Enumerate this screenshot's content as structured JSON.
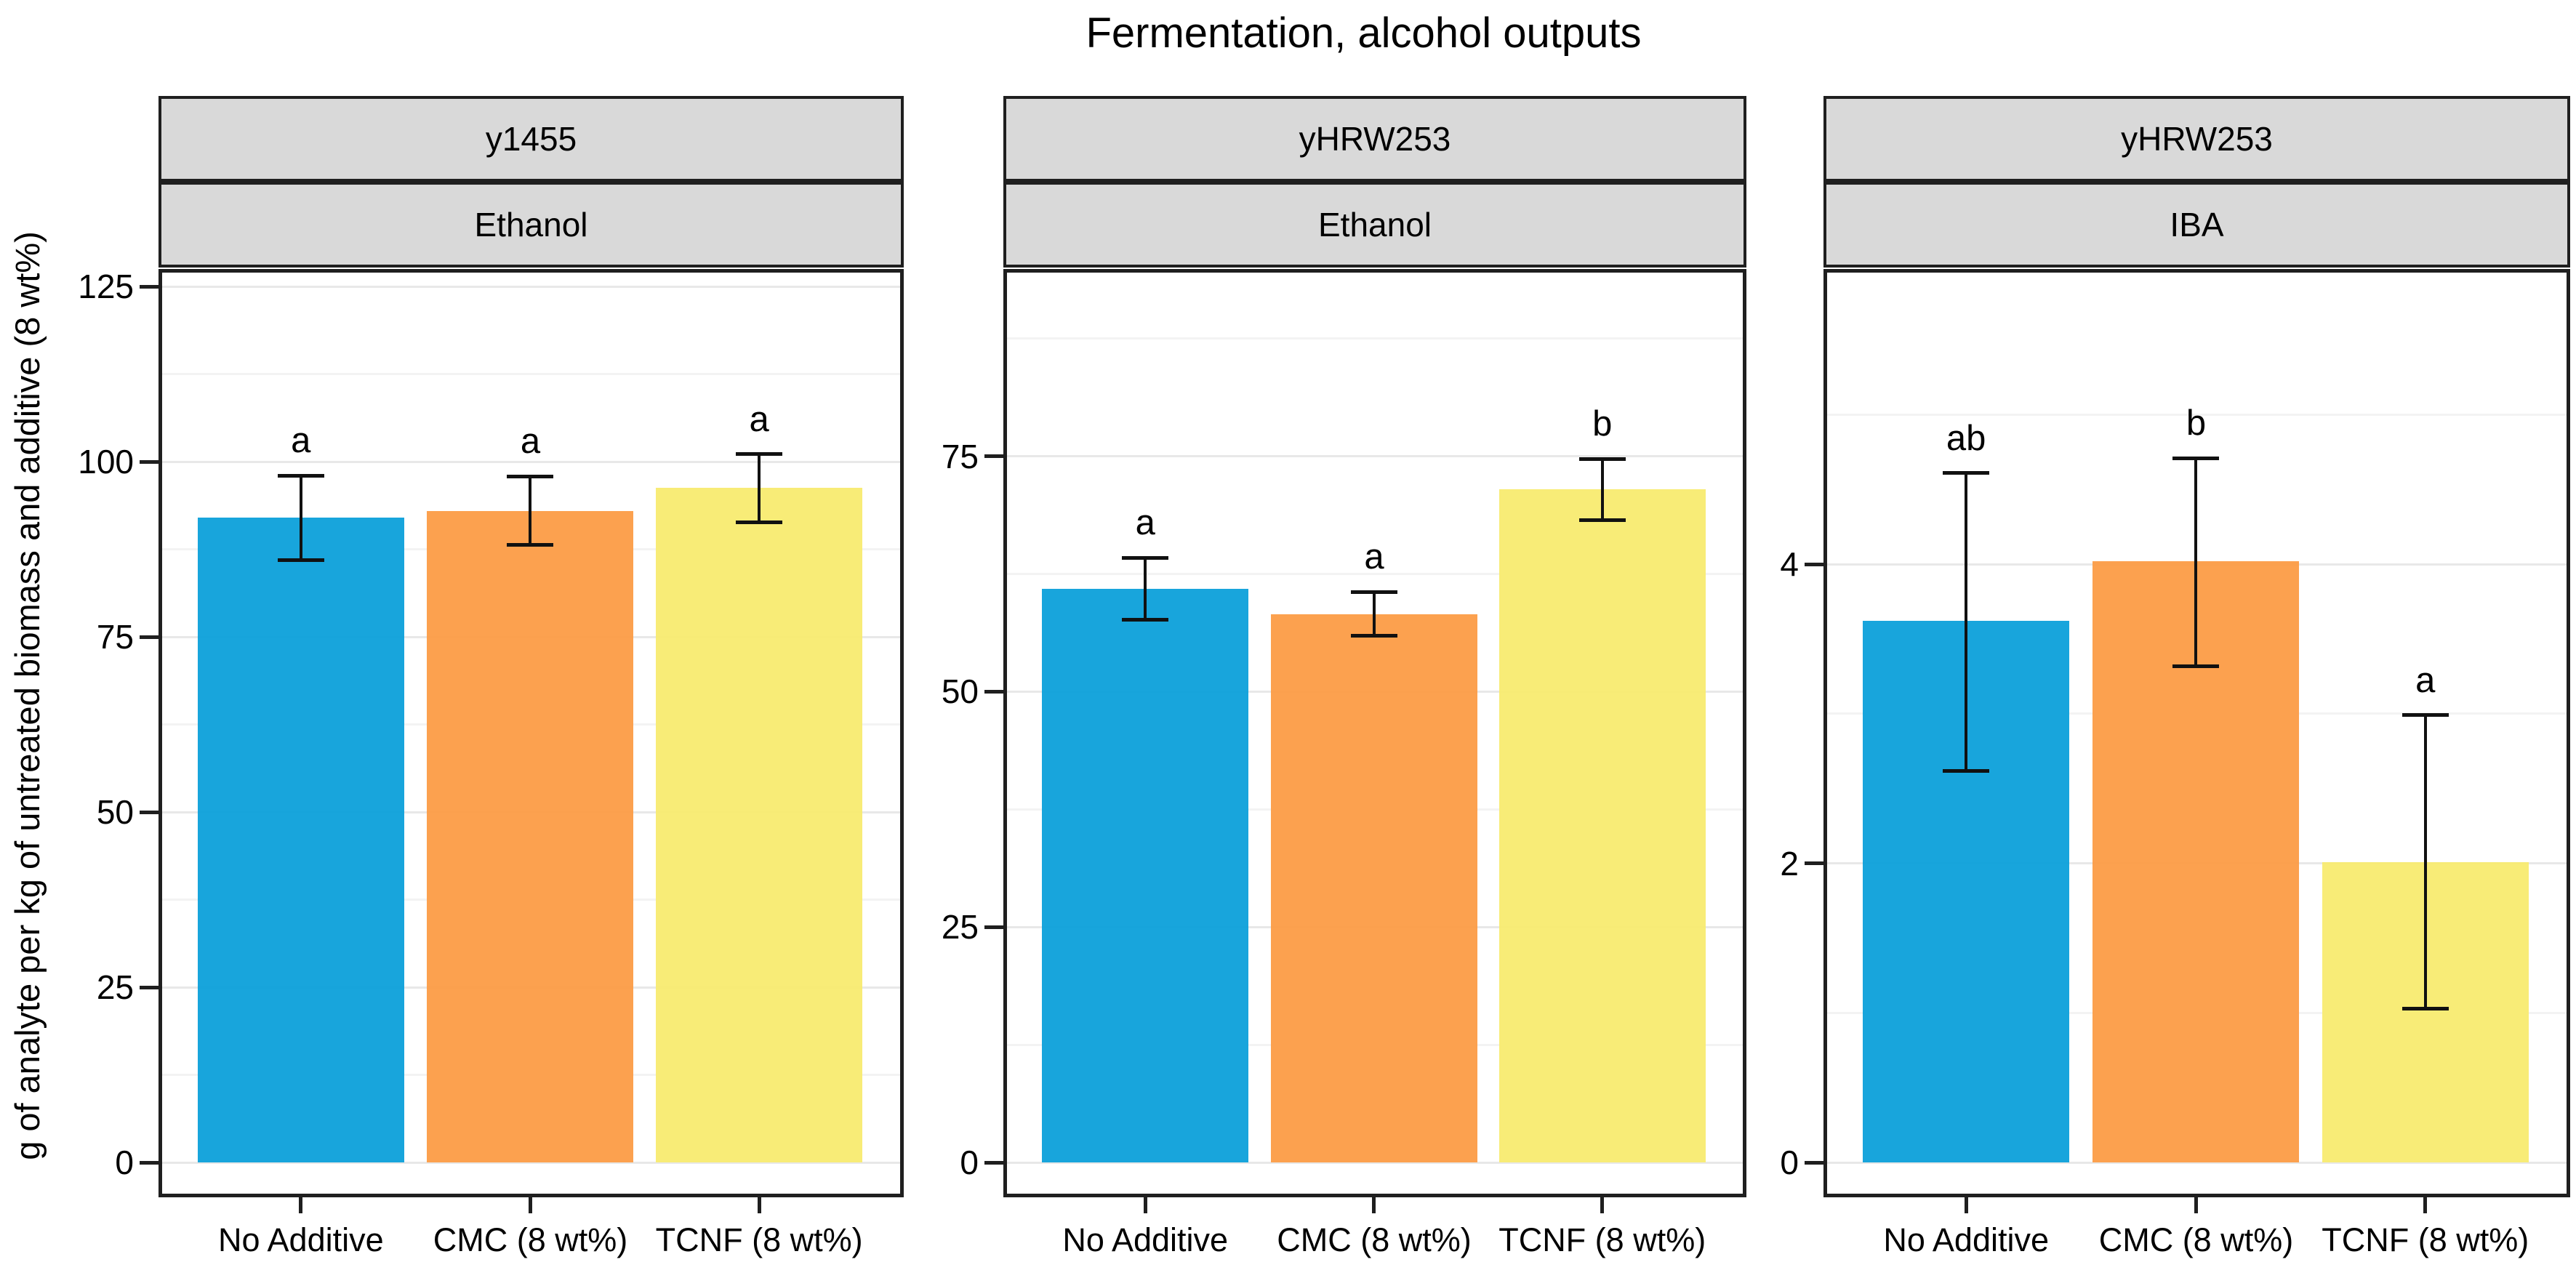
{
  "title": "Fermentation, alcohol outputs",
  "y_axis_title": "g of analyte per kg of untreated biomass and additive (8 wt%)",
  "x_categories": [
    "No Additive",
    "CMC (8 wt%)",
    "TCNF (8 wt%)"
  ],
  "colors": {
    "bar_no_additive": "#069ED9",
    "bar_cmc": "#FC9A42",
    "bar_tcnf": "#F7EB6D",
    "strip_background": "#D9D9D9",
    "grid_major": "#E8E8E8",
    "grid_minor": "#F3F3F3",
    "axis_border": "#1F1F1F",
    "text": "#000000"
  },
  "chart_data": [
    {
      "type": "bar",
      "strip_top": "y1455",
      "strip_bottom": "Ethanol",
      "categories": [
        "No Additive",
        "CMC (8 wt%)",
        "TCNF (8 wt%)"
      ],
      "values": [
        92.0,
        93.0,
        96.3
      ],
      "error_low": [
        86.0,
        88.1,
        91.4
      ],
      "error_high": [
        98.0,
        97.9,
        101.1
      ],
      "sig_letters": [
        "a",
        "a",
        "a"
      ],
      "y_ticks": [
        0,
        25,
        50,
        75,
        100,
        125
      ],
      "y_minor_ticks": [
        12.5,
        37.5,
        62.5,
        87.5,
        112.5
      ],
      "ylim": [
        0,
        127
      ],
      "xlabel": "",
      "ylabel": "g of analyte per kg of untreated biomass and additive (8 wt%)",
      "grid": "on",
      "legend": "none"
    },
    {
      "type": "bar",
      "strip_top": "yHRW253",
      "strip_bottom": "Ethanol",
      "categories": [
        "No Additive",
        "CMC (8 wt%)",
        "TCNF (8 wt%)"
      ],
      "values": [
        60.9,
        58.2,
        71.5
      ],
      "error_low": [
        57.6,
        55.9,
        68.2
      ],
      "error_high": [
        64.2,
        60.6,
        74.7
      ],
      "sig_letters": [
        "a",
        "a",
        "b"
      ],
      "y_ticks": [
        0,
        25,
        50,
        75
      ],
      "y_minor_ticks": [
        12.5,
        37.5,
        62.5,
        87.5
      ],
      "ylim": [
        0,
        94.5
      ],
      "xlabel": "",
      "ylabel": "g of analyte per kg of untreated biomass and additive (8 wt%)",
      "grid": "on",
      "legend": "none"
    },
    {
      "type": "bar",
      "strip_top": "yHRW253",
      "strip_bottom": "IBA",
      "categories": [
        "No Additive",
        "CMC (8 wt%)",
        "TCNF (8 wt%)"
      ],
      "values": [
        3.62,
        4.02,
        2.01
      ],
      "error_low": [
        2.62,
        3.32,
        1.03
      ],
      "error_high": [
        4.61,
        4.71,
        2.99
      ],
      "sig_letters": [
        "ab",
        "b",
        "a"
      ],
      "y_ticks": [
        0,
        2,
        4
      ],
      "y_minor_ticks": [
        1,
        3,
        5
      ],
      "ylim": [
        0,
        5.95
      ],
      "xlabel": "",
      "ylabel": "g of analyte per kg of untreated biomass and additive (8 wt%)",
      "grid": "on",
      "legend": "none"
    }
  ]
}
